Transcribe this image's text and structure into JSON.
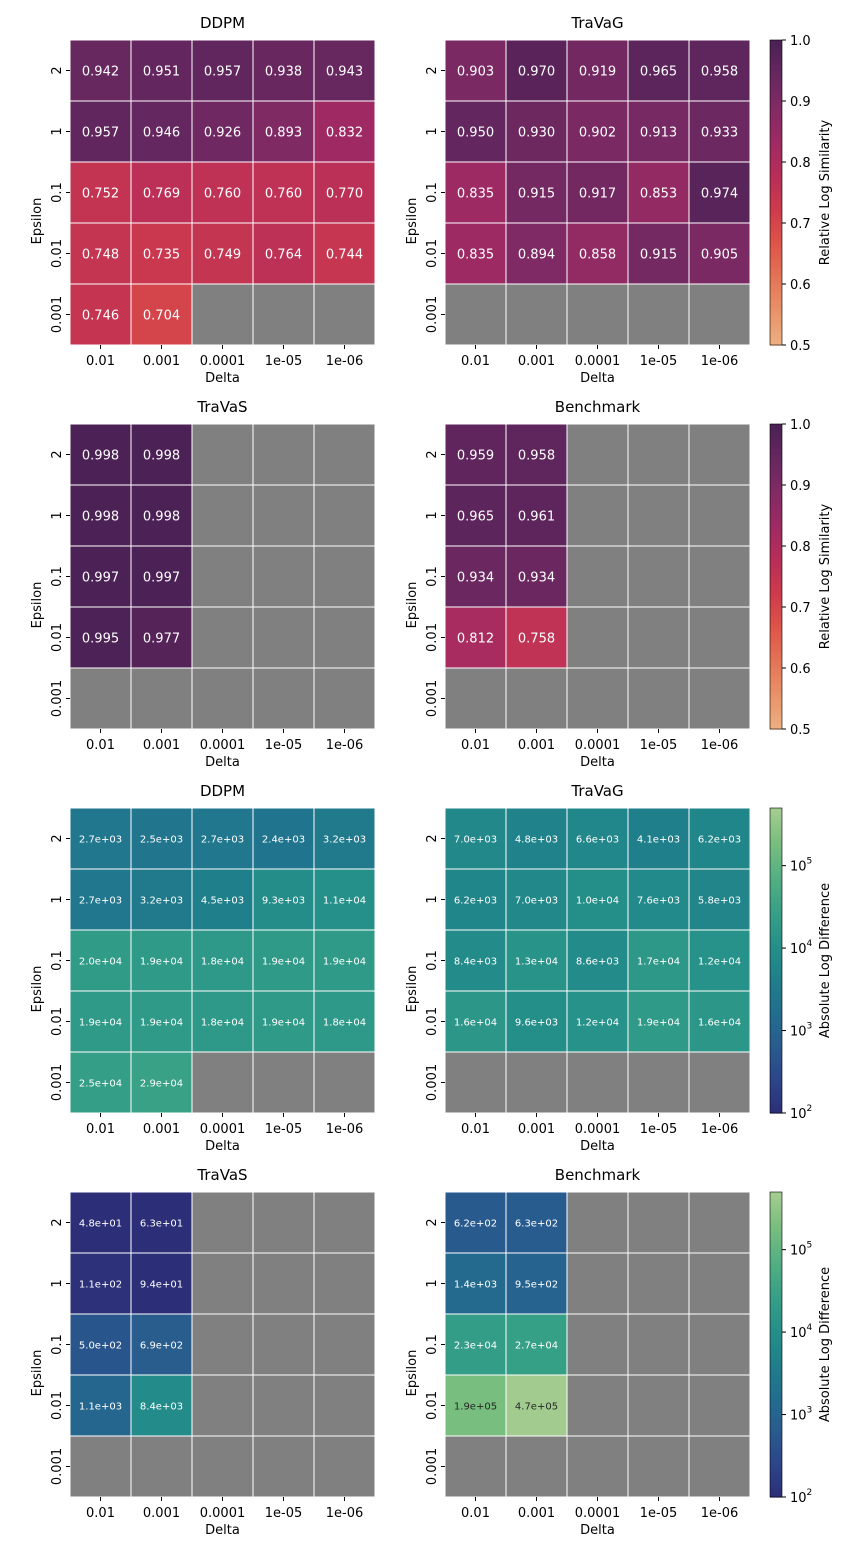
{
  "chart_data": [
    {
      "type": "heatmap",
      "title": "DDPM",
      "xlabel": "Delta",
      "ylabel": "Epsilon",
      "x_categories": [
        "0.01",
        "0.001",
        "0.0001",
        "1e-05",
        "1e-06"
      ],
      "y_categories": [
        "2",
        "1",
        "0.1",
        "0.01",
        "0.001"
      ],
      "scale": "linear",
      "value_range": [
        0.5,
        1.0
      ],
      "values": [
        [
          0.942,
          0.951,
          0.957,
          0.938,
          0.943
        ],
        [
          0.957,
          0.946,
          0.926,
          0.893,
          0.832
        ],
        [
          0.752,
          0.769,
          0.76,
          0.76,
          0.77
        ],
        [
          0.748,
          0.735,
          0.749,
          0.764,
          0.744
        ],
        [
          0.746,
          0.704,
          null,
          null,
          null
        ]
      ],
      "labels": [
        [
          "0.942",
          "0.951",
          "0.957",
          "0.938",
          "0.943"
        ],
        [
          "0.957",
          "0.946",
          "0.926",
          "0.893",
          "0.832"
        ],
        [
          "0.752",
          "0.769",
          "0.760",
          "0.760",
          "0.770"
        ],
        [
          "0.748",
          "0.735",
          "0.749",
          "0.764",
          "0.744"
        ],
        [
          "0.746",
          "0.704",
          null,
          null,
          null
        ]
      ]
    },
    {
      "type": "heatmap",
      "title": "TraVaG",
      "xlabel": "Delta",
      "ylabel": "Epsilon",
      "x_categories": [
        "0.01",
        "0.001",
        "0.0001",
        "1e-05",
        "1e-06"
      ],
      "y_categories": [
        "2",
        "1",
        "0.1",
        "0.01",
        "0.001"
      ],
      "scale": "linear",
      "value_range": [
        0.5,
        1.0
      ],
      "values": [
        [
          0.903,
          0.97,
          0.919,
          0.965,
          0.958
        ],
        [
          0.95,
          0.93,
          0.902,
          0.913,
          0.933
        ],
        [
          0.835,
          0.915,
          0.917,
          0.853,
          0.974
        ],
        [
          0.835,
          0.894,
          0.858,
          0.915,
          0.905
        ],
        [
          null,
          null,
          null,
          null,
          null
        ]
      ],
      "labels": [
        [
          "0.903",
          "0.970",
          "0.919",
          "0.965",
          "0.958"
        ],
        [
          "0.950",
          "0.930",
          "0.902",
          "0.913",
          "0.933"
        ],
        [
          "0.835",
          "0.915",
          "0.917",
          "0.853",
          "0.974"
        ],
        [
          "0.835",
          "0.894",
          "0.858",
          "0.915",
          "0.905"
        ],
        [
          null,
          null,
          null,
          null,
          null
        ]
      ]
    },
    {
      "type": "heatmap",
      "title": "TraVaS",
      "xlabel": "Delta",
      "ylabel": "Epsilon",
      "x_categories": [
        "0.01",
        "0.001",
        "0.0001",
        "1e-05",
        "1e-06"
      ],
      "y_categories": [
        "2",
        "1",
        "0.1",
        "0.01",
        "0.001"
      ],
      "scale": "linear",
      "value_range": [
        0.5,
        1.0
      ],
      "values": [
        [
          0.998,
          0.998,
          null,
          null,
          null
        ],
        [
          0.998,
          0.998,
          null,
          null,
          null
        ],
        [
          0.997,
          0.997,
          null,
          null,
          null
        ],
        [
          0.995,
          0.977,
          null,
          null,
          null
        ],
        [
          null,
          null,
          null,
          null,
          null
        ]
      ],
      "labels": [
        [
          "0.998",
          "0.998",
          null,
          null,
          null
        ],
        [
          "0.998",
          "0.998",
          null,
          null,
          null
        ],
        [
          "0.997",
          "0.997",
          null,
          null,
          null
        ],
        [
          "0.995",
          "0.977",
          null,
          null,
          null
        ],
        [
          null,
          null,
          null,
          null,
          null
        ]
      ]
    },
    {
      "type": "heatmap",
      "title": "Benchmark",
      "xlabel": "Delta",
      "ylabel": "Epsilon",
      "x_categories": [
        "0.01",
        "0.001",
        "0.0001",
        "1e-05",
        "1e-06"
      ],
      "y_categories": [
        "2",
        "1",
        "0.1",
        "0.01",
        "0.001"
      ],
      "scale": "linear",
      "value_range": [
        0.5,
        1.0
      ],
      "values": [
        [
          0.959,
          0.958,
          null,
          null,
          null
        ],
        [
          0.965,
          0.961,
          null,
          null,
          null
        ],
        [
          0.934,
          0.934,
          null,
          null,
          null
        ],
        [
          0.812,
          0.758,
          null,
          null,
          null
        ],
        [
          null,
          null,
          null,
          null,
          null
        ]
      ],
      "labels": [
        [
          "0.959",
          "0.958",
          null,
          null,
          null
        ],
        [
          "0.965",
          "0.961",
          null,
          null,
          null
        ],
        [
          "0.934",
          "0.934",
          null,
          null,
          null
        ],
        [
          "0.812",
          "0.758",
          null,
          null,
          null
        ],
        [
          null,
          null,
          null,
          null,
          null
        ]
      ]
    },
    {
      "type": "heatmap",
      "title": "DDPM",
      "xlabel": "Delta",
      "ylabel": "Epsilon",
      "x_categories": [
        "0.01",
        "0.001",
        "0.0001",
        "1e-05",
        "1e-06"
      ],
      "y_categories": [
        "2",
        "1",
        "0.1",
        "0.01",
        "0.001"
      ],
      "scale": "log",
      "value_range": [
        100,
        500000
      ],
      "values": [
        [
          2700,
          2500,
          2700,
          2400,
          3200
        ],
        [
          2700,
          3200,
          4500,
          9300,
          11000
        ],
        [
          20000,
          19000,
          18000,
          19000,
          19000
        ],
        [
          19000,
          19000,
          18000,
          19000,
          18000
        ],
        [
          25000,
          29000,
          null,
          null,
          null
        ]
      ],
      "labels": [
        [
          "2.7e+03",
          "2.5e+03",
          "2.7e+03",
          "2.4e+03",
          "3.2e+03"
        ],
        [
          "2.7e+03",
          "3.2e+03",
          "4.5e+03",
          "9.3e+03",
          "1.1e+04"
        ],
        [
          "2.0e+04",
          "1.9e+04",
          "1.8e+04",
          "1.9e+04",
          "1.9e+04"
        ],
        [
          "1.9e+04",
          "1.9e+04",
          "1.8e+04",
          "1.9e+04",
          "1.8e+04"
        ],
        [
          "2.5e+04",
          "2.9e+04",
          null,
          null,
          null
        ]
      ]
    },
    {
      "type": "heatmap",
      "title": "TraVaG",
      "xlabel": "Delta",
      "ylabel": "Epsilon",
      "x_categories": [
        "0.01",
        "0.001",
        "0.0001",
        "1e-05",
        "1e-06"
      ],
      "y_categories": [
        "2",
        "1",
        "0.1",
        "0.01",
        "0.001"
      ],
      "scale": "log",
      "value_range": [
        100,
        500000
      ],
      "values": [
        [
          7000,
          4800,
          6600,
          4100,
          6200
        ],
        [
          6200,
          7000,
          10000,
          7600,
          5800
        ],
        [
          8400,
          13000,
          8600,
          17000,
          12000
        ],
        [
          16000,
          9600,
          12000,
          19000,
          16000
        ],
        [
          null,
          null,
          null,
          null,
          null
        ]
      ],
      "labels": [
        [
          "7.0e+03",
          "4.8e+03",
          "6.6e+03",
          "4.1e+03",
          "6.2e+03"
        ],
        [
          "6.2e+03",
          "7.0e+03",
          "1.0e+04",
          "7.6e+03",
          "5.8e+03"
        ],
        [
          "8.4e+03",
          "1.3e+04",
          "8.6e+03",
          "1.7e+04",
          "1.2e+04"
        ],
        [
          "1.6e+04",
          "9.6e+03",
          "1.2e+04",
          "1.9e+04",
          "1.6e+04"
        ],
        [
          null,
          null,
          null,
          null,
          null
        ]
      ]
    },
    {
      "type": "heatmap",
      "title": "TraVaS",
      "xlabel": "Delta",
      "ylabel": "Epsilon",
      "x_categories": [
        "0.01",
        "0.001",
        "0.0001",
        "1e-05",
        "1e-06"
      ],
      "y_categories": [
        "2",
        "1",
        "0.1",
        "0.01",
        "0.001"
      ],
      "scale": "log",
      "value_range": [
        100,
        500000
      ],
      "values": [
        [
          48,
          63,
          null,
          null,
          null
        ],
        [
          110,
          94,
          null,
          null,
          null
        ],
        [
          500,
          690,
          null,
          null,
          null
        ],
        [
          1100,
          8400,
          null,
          null,
          null
        ],
        [
          null,
          null,
          null,
          null,
          null
        ]
      ],
      "labels": [
        [
          "4.8e+01",
          "6.3e+01",
          null,
          null,
          null
        ],
        [
          "1.1e+02",
          "9.4e+01",
          null,
          null,
          null
        ],
        [
          "5.0e+02",
          "6.9e+02",
          null,
          null,
          null
        ],
        [
          "1.1e+03",
          "8.4e+03",
          null,
          null,
          null
        ],
        [
          null,
          null,
          null,
          null,
          null
        ]
      ]
    },
    {
      "type": "heatmap",
      "title": "Benchmark",
      "xlabel": "Delta",
      "ylabel": "Epsilon",
      "x_categories": [
        "0.01",
        "0.001",
        "0.0001",
        "1e-05",
        "1e-06"
      ],
      "y_categories": [
        "2",
        "1",
        "0.1",
        "0.01",
        "0.001"
      ],
      "scale": "log",
      "value_range": [
        100,
        500000
      ],
      "values": [
        [
          620,
          630,
          null,
          null,
          null
        ],
        [
          1400,
          950,
          null,
          null,
          null
        ],
        [
          23000,
          27000,
          null,
          null,
          null
        ],
        [
          190000,
          470000,
          null,
          null,
          null
        ],
        [
          null,
          null,
          null,
          null,
          null
        ]
      ],
      "labels": [
        [
          "6.2e+02",
          "6.3e+02",
          null,
          null,
          null
        ],
        [
          "1.4e+03",
          "9.5e+02",
          null,
          null,
          null
        ],
        [
          "2.3e+04",
          "2.7e+04",
          null,
          null,
          null
        ],
        [
          "1.9e+05",
          "4.7e+05",
          null,
          null,
          null
        ],
        [
          null,
          null,
          null,
          null,
          null
        ]
      ]
    }
  ],
  "colorbars": [
    {
      "label": "Relative Log Similarity",
      "scale": "linear",
      "range": [
        0.5,
        1.0
      ],
      "ticks": [
        "0.5",
        "0.6",
        "0.7",
        "0.8",
        "0.9",
        "1.0"
      ]
    },
    {
      "label": "Relative Log Similarity",
      "scale": "linear",
      "range": [
        0.5,
        1.0
      ],
      "ticks": [
        "0.5",
        "0.6",
        "0.7",
        "0.8",
        "0.9",
        "1.0"
      ]
    },
    {
      "label": "Absolute Log Difference",
      "scale": "log",
      "range": [
        100,
        500000
      ],
      "ticks": [
        "10",
        "10",
        "10",
        "10"
      ],
      "tick_exponents": [
        "2",
        "3",
        "4",
        "5"
      ]
    },
    {
      "label": "Absolute Log Difference",
      "scale": "log",
      "range": [
        100,
        500000
      ],
      "ticks": [
        "10",
        "10",
        "10",
        "10"
      ],
      "tick_exponents": [
        "2",
        "3",
        "4",
        "5"
      ]
    }
  ],
  "colors": {
    "missing": "#808080",
    "grid_line": "#ffffff",
    "flare_palette": [
      "#EDB081",
      "#E9936A",
      "#E47456",
      "#DE5548",
      "#CF3B4C",
      "#B82E59",
      "#9E2A63",
      "#822A64",
      "#66275F",
      "#4B2155"
    ],
    "crest_palette": [
      "#2C2F78",
      "#2D4589",
      "#285C8E",
      "#226E8E",
      "#1F808B",
      "#259189",
      "#38A186",
      "#55B082",
      "#79BE7F",
      "#A5CD90"
    ]
  }
}
